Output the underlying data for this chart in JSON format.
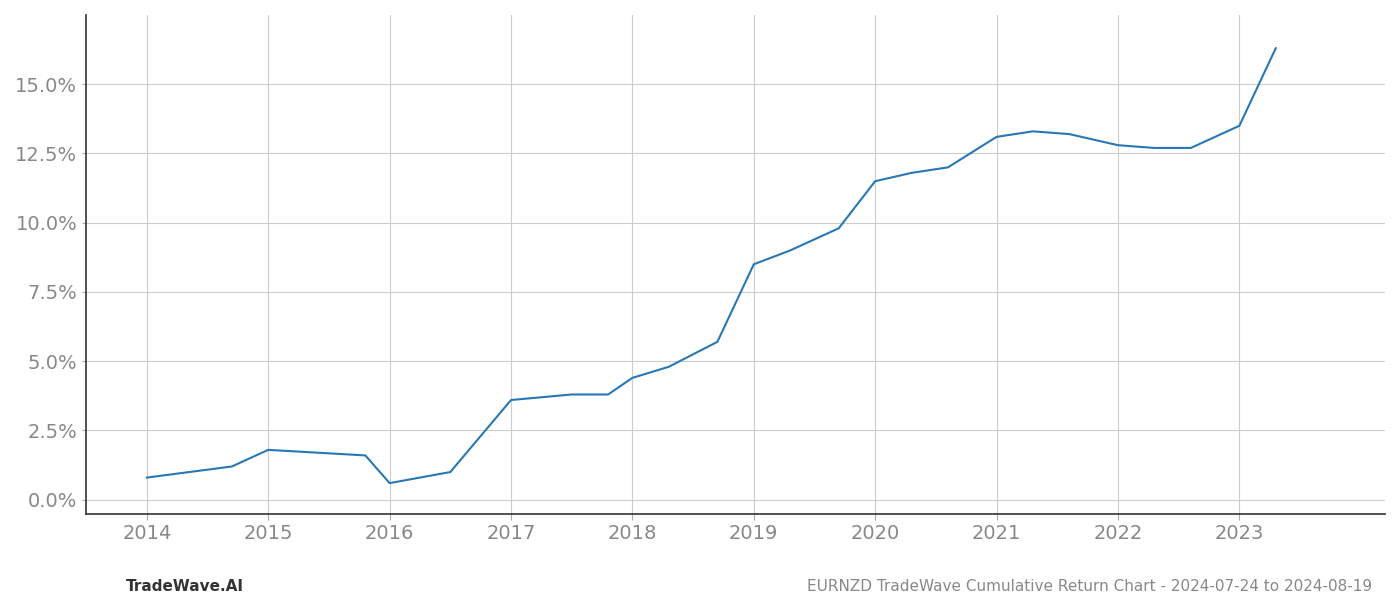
{
  "x_years": [
    2014.0,
    2014.7,
    2015.0,
    2015.8,
    2016.0,
    2016.5,
    2017.0,
    2017.5,
    2017.8,
    2018.0,
    2018.3,
    2018.7,
    2019.0,
    2019.3,
    2019.7,
    2020.0,
    2020.3,
    2020.6,
    2021.0,
    2021.3,
    2021.6,
    2022.0,
    2022.3,
    2022.6,
    2023.0,
    2023.3
  ],
  "y_values": [
    0.008,
    0.012,
    0.018,
    0.016,
    0.006,
    0.01,
    0.036,
    0.038,
    0.038,
    0.044,
    0.048,
    0.057,
    0.085,
    0.09,
    0.098,
    0.115,
    0.118,
    0.12,
    0.131,
    0.133,
    0.132,
    0.128,
    0.127,
    0.127,
    0.135,
    0.163
  ],
  "line_color": "#2878b5",
  "line_width": 1.5,
  "background_color": "#ffffff",
  "grid_color": "#cccccc",
  "tick_label_color": "#888888",
  "yticks": [
    0.0,
    0.025,
    0.05,
    0.075,
    0.1,
    0.125,
    0.15
  ],
  "xticks": [
    2014,
    2015,
    2016,
    2017,
    2018,
    2019,
    2020,
    2021,
    2022,
    2023
  ],
  "ylim": [
    -0.005,
    0.175
  ],
  "xlim": [
    2013.5,
    2024.2
  ],
  "footer_left": "TradeWave.AI",
  "footer_right": "EURNZD TradeWave Cumulative Return Chart - 2024-07-24 to 2024-08-19",
  "footer_color": "#888888",
  "footer_fontsize": 11,
  "tick_fontsize": 14
}
